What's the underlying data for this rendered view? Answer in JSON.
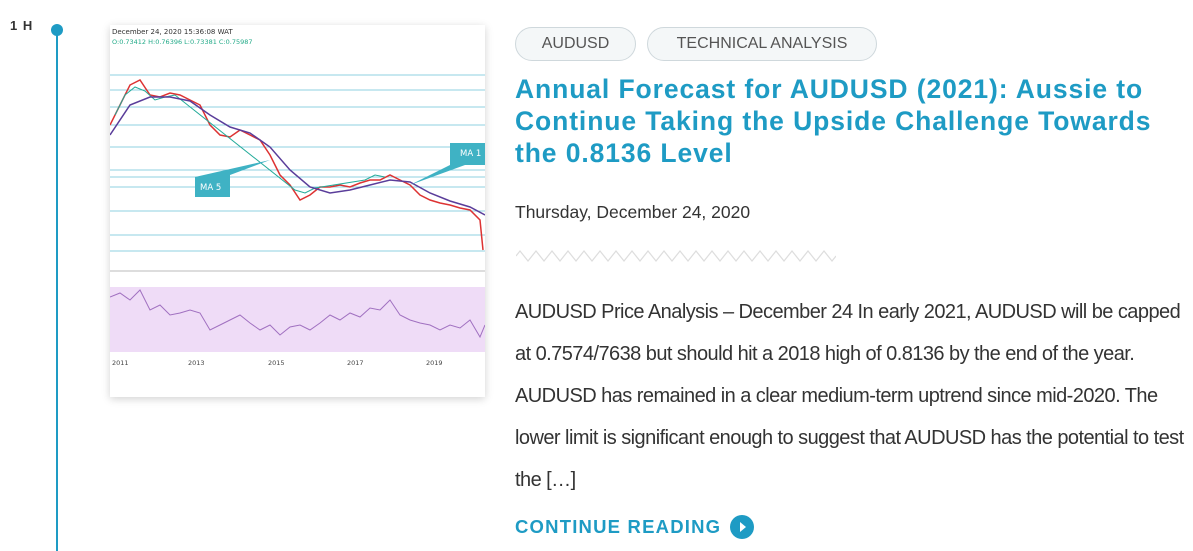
{
  "timeline": {
    "label": "1 H"
  },
  "thumbnail": {
    "timestamp": "December 24, 2020 15:36:08 WAT",
    "ohlc": "O:0.73412 H:0.76396 L:0.73381 C:0.75987",
    "ma_short": "MA 5",
    "ma_long": "MA 1",
    "years": [
      "2011",
      "2013",
      "2015",
      "2017",
      "2019"
    ]
  },
  "post": {
    "tags": [
      "AUDUSD",
      "TECHNICAL ANALYSIS"
    ],
    "title": "Annual Forecast for AUDUSD (2021): Aussie to Continue Taking the Upside Challenge Towards the 0.8136 Level",
    "date": "Thursday, December 24, 2020",
    "excerpt": "AUDUSD Price Analysis – December 24 In early 2021, AUDUSD will be capped at 0.7574/7638 but should hit a 2018 high of 0.8136 by the end of the year. AUDUSD has remained in a clear medium-term uptrend since mid-2020. The lower limit is significant enough to suggest that AUDUSD has the potential to test the […]",
    "read_more": "CONTINUE READING"
  }
}
